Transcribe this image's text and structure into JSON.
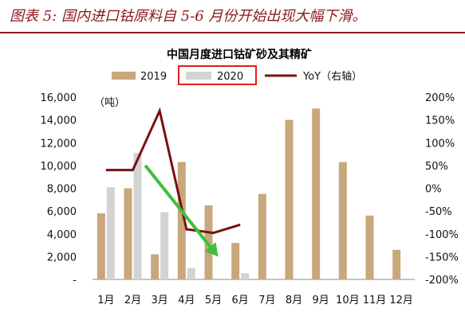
{
  "caption": "图表 5: 国内进口钴原料自 5-6 月份开始出现大幅下滑。",
  "chart_data": {
    "type": "bar",
    "title": "中国月度进口钴矿砂及其精矿",
    "y_unit_label": "（吨）",
    "categories": [
      "1月",
      "2月",
      "3月",
      "4月",
      "5月",
      "6月",
      "7月",
      "8月",
      "9月",
      "10月",
      "11月",
      "12月"
    ],
    "left_axis": {
      "ylim": [
        0,
        16000
      ],
      "ticks": [
        "-",
        "2,000",
        "4,000",
        "6,000",
        "8,000",
        "10,000",
        "12,000",
        "14,000",
        "16,000"
      ]
    },
    "right_axis": {
      "ylim": [
        -200,
        200
      ],
      "ticks": [
        "-200%",
        "-150%",
        "-100%",
        "-50%",
        "0%",
        "50%",
        "100%",
        "150%",
        "200%"
      ]
    },
    "series": [
      {
        "name": "2019",
        "kind": "bar",
        "color": "#c9a77c",
        "values": [
          5800,
          8000,
          2200,
          10300,
          6500,
          3200,
          7500,
          14000,
          15000,
          10300,
          5600,
          2600
        ]
      },
      {
        "name": "2020",
        "kind": "bar",
        "color": "#d3d3d3",
        "values": [
          8100,
          11100,
          5900,
          1000,
          0,
          550,
          null,
          null,
          null,
          null,
          null,
          null
        ]
      },
      {
        "name": "YoY（右轴）",
        "kind": "line",
        "axis": "right",
        "color": "#7a1010",
        "values": [
          40,
          40,
          170,
          -90,
          -98,
          -80,
          null,
          null,
          null,
          null,
          null,
          null
        ]
      }
    ],
    "annotations": {
      "legend_highlight": "2020",
      "legend_highlight_color": "#e0201a",
      "arrow": {
        "from": [
          2,
          10000
        ],
        "to": [
          4,
          2000
        ],
        "color": "#3fbf3a"
      }
    }
  }
}
